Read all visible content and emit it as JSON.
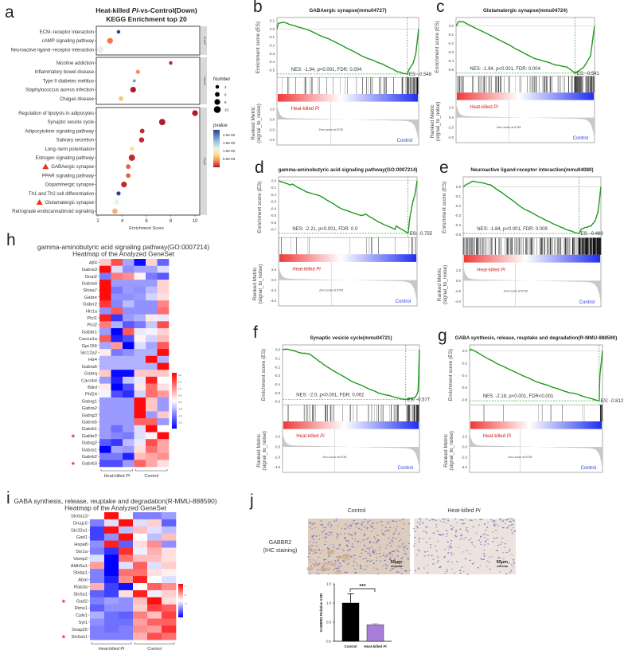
{
  "panel_a": {
    "letter": "a",
    "title_parts": [
      "Heat-killed ",
      "Pi",
      "-vs-Control(Down)"
    ],
    "title_line2": "KEGG Enrichment top 20",
    "xlabel": "Enrichment Score",
    "xticks": [
      2,
      4,
      6,
      8,
      10
    ],
    "xlim": [
      1.7,
      10.5
    ],
    "size_legend_title": "Number",
    "size_legend": [
      4,
      6,
      8,
      10
    ],
    "color_legend_title": "pvalue",
    "color_legend_labels": [
      "2.0e-02",
      "1.5e-02",
      "1.0e-02",
      "5.0e-03"
    ],
    "marker_color": "#e8321e",
    "facets": [
      {
        "label": "EnvIP",
        "terms": [
          {
            "name": "ECM−receptor interaction",
            "score": 3.7,
            "number": 4,
            "pvalue": 0.025,
            "marked": false
          },
          {
            "name": "cAMP signaling pathway",
            "score": 3.0,
            "number": 8,
            "pvalue": 0.007,
            "marked": false
          },
          {
            "name": "Neuroactive ligand−receptor interaction",
            "score": 2.2,
            "number": 10,
            "pvalue": 0.014,
            "marked": false
          }
        ]
      },
      {
        "label": "HumD",
        "terms": [
          {
            "name": "Nicotine addiction",
            "score": 8.0,
            "number": 4,
            "pvalue": 0.003,
            "marked": false
          },
          {
            "name": "Inflammatory bowel disease",
            "score": 5.3,
            "number": 5,
            "pvalue": 0.008,
            "marked": false
          },
          {
            "name": "Type II diabetes mellitus",
            "score": 5.0,
            "number": 3,
            "pvalue": 0.02,
            "marked": false
          },
          {
            "name": "Staphylococcus aureus infection",
            "score": 4.9,
            "number": 8,
            "pvalue": 0.002,
            "marked": false
          },
          {
            "name": "Chagas disease",
            "score": 3.9,
            "number": 6,
            "pvalue": 0.01,
            "marked": false
          }
        ]
      },
      {
        "label": "OrgS",
        "terms": [
          {
            "name": "Regulation of lipolysis in adipocytes",
            "score": 10.0,
            "number": 8,
            "pvalue": 0.002,
            "marked": false
          },
          {
            "name": "Synaptic vesicle cycle",
            "score": 7.3,
            "number": 9,
            "pvalue": 0.002,
            "marked": false
          },
          {
            "name": "Adipocytokine signaling pathway",
            "score": 5.65,
            "number": 6,
            "pvalue": 0.003,
            "marked": false
          },
          {
            "name": "Salivary secretion",
            "score": 5.6,
            "number": 7,
            "pvalue": 0.003,
            "marked": false
          },
          {
            "name": "Long−term potentiation",
            "score": 4.8,
            "number": 5,
            "pvalue": 0.011,
            "marked": false
          },
          {
            "name": "Estrogen signaling pathway",
            "score": 4.8,
            "number": 9,
            "pvalue": 0.003,
            "marked": false
          },
          {
            "name": "GABAergic synapse",
            "score": 4.5,
            "number": 6,
            "pvalue": 0.006,
            "marked": true
          },
          {
            "name": "PPAR signaling pathway",
            "score": 4.5,
            "number": 6,
            "pvalue": 0.006,
            "marked": false
          },
          {
            "name": "Dopaminergic synapse",
            "score": 4.15,
            "number": 8,
            "pvalue": 0.003,
            "marked": false
          },
          {
            "name": "Th1 and Th2 cell differentiation",
            "score": 3.7,
            "number": 5,
            "pvalue": 0.025,
            "marked": false
          },
          {
            "name": "Glutamatergic synapse",
            "score": 3.55,
            "number": 6,
            "pvalue": 0.014,
            "marked": true
          },
          {
            "name": "Retrograde endocannabinoid signaling",
            "score": 3.4,
            "number": 7,
            "pvalue": 0.009,
            "marked": false
          }
        ]
      }
    ]
  },
  "gsea_common": {
    "es_ylabel": "Enrichment score (ES)",
    "rank_ylabel_1": "Ranked Metric",
    "rank_ylabel_2": "(signal_to_noise)",
    "rank_ticks": [
      "2.0",
      "0.0",
      "-2.0",
      "-4.0"
    ],
    "zero_score": "Zero score at 6735",
    "pos_label_parts": [
      "Heat-killed ",
      "Pi"
    ],
    "neg_label": "Control",
    "curve_color": "#1e9a1e",
    "pos_color": "#d7191c",
    "neg_color": "#2b3bd6"
  },
  "gsea": [
    {
      "letter": "b",
      "title": "GABAergic synapse(mmu04727)",
      "nes_text": "NES: -1.94, p<0.001, FDR: 0.004",
      "es_label": "ES: -0.548",
      "es_min": -0.548,
      "peak": 0.92,
      "ylim": [
        -0.56,
        0.11
      ],
      "es_ticks": [
        "0.1",
        "0.0",
        "-0.1",
        "-0.2",
        "-0.3",
        "-0.4",
        "-0.5"
      ],
      "es_tick_values": [
        0.1,
        0,
        -0.1,
        -0.2,
        -0.3,
        -0.4,
        -0.5
      ],
      "hit_count": 70,
      "curve": [
        [
          0,
          0
        ],
        [
          0.01,
          0.07
        ],
        [
          0.05,
          0.08
        ],
        [
          0.1,
          0.05
        ],
        [
          0.2,
          0.0
        ],
        [
          0.4,
          -0.15
        ],
        [
          0.6,
          -0.33
        ],
        [
          0.75,
          -0.43
        ],
        [
          0.85,
          -0.52
        ],
        [
          0.92,
          -0.548
        ],
        [
          0.93,
          -0.5
        ],
        [
          0.96,
          -0.42
        ],
        [
          0.98,
          -0.3
        ],
        [
          1,
          0
        ]
      ]
    },
    {
      "letter": "c",
      "title": "Glutamatergic synapse(mmu04724)",
      "nes_text": "NES: -1.94, p<0.001, FDR: 0.004",
      "es_label": "ES: -0.541",
      "es_min": -0.541,
      "peak": 0.86,
      "ylim": [
        -0.55,
        0.07
      ],
      "es_ticks": [
        "0.0",
        "-0.1",
        "-0.2",
        "-0.3",
        "-0.4",
        "-0.5"
      ],
      "es_tick_values": [
        0,
        -0.1,
        -0.2,
        -0.3,
        -0.4,
        -0.5
      ],
      "hit_count": 130,
      "curve": [
        [
          0,
          0
        ],
        [
          0.02,
          0.05
        ],
        [
          0.05,
          0.05
        ],
        [
          0.3,
          -0.15
        ],
        [
          0.55,
          -0.36
        ],
        [
          0.65,
          -0.41
        ],
        [
          0.72,
          -0.45
        ],
        [
          0.8,
          -0.47
        ],
        [
          0.86,
          -0.541
        ],
        [
          0.92,
          -0.48
        ],
        [
          0.97,
          -0.35
        ],
        [
          1,
          0
        ]
      ]
    },
    {
      "letter": "d",
      "title": "gamma-aminobutyric acid signaling pathway(GO:0007214)",
      "nes_text": "NES: -2.21, p<0.001, FDR: 0.0",
      "es_label": "ES: -0.755",
      "es_min": -0.755,
      "peak": 0.935,
      "ylim": [
        -0.78,
        0.02
      ],
      "es_ticks": [
        "0.0",
        "-0.1",
        "-0.2",
        "-0.3",
        "-0.4",
        "-0.5",
        "-0.6",
        "-0.7"
      ],
      "es_tick_values": [
        0,
        -0.1,
        -0.2,
        -0.3,
        -0.4,
        -0.5,
        -0.6,
        -0.7
      ],
      "hit_count": 20,
      "curve": [
        [
          0,
          0
        ],
        [
          0.08,
          -0.06
        ],
        [
          0.1,
          -0.05
        ],
        [
          0.2,
          -0.16
        ],
        [
          0.3,
          -0.22
        ],
        [
          0.45,
          -0.4
        ],
        [
          0.6,
          -0.5
        ],
        [
          0.63,
          -0.48
        ],
        [
          0.72,
          -0.59
        ],
        [
          0.84,
          -0.7
        ],
        [
          0.85,
          -0.65
        ],
        [
          0.935,
          -0.755
        ],
        [
          0.95,
          -0.5
        ],
        [
          0.97,
          -0.3
        ],
        [
          0.985,
          -0.2
        ],
        [
          1,
          0
        ]
      ]
    },
    {
      "letter": "e",
      "title": "Neuroactive ligand-receptor interaction(mmu04080)",
      "nes_text": "NES: -1.84, p<0.001, FDR: 0.009",
      "es_label": "ES: -0.489",
      "es_min": -0.489,
      "peak": 0.84,
      "ylim": [
        -0.51,
        0.08
      ],
      "es_ticks": [
        "0.0",
        "-0.1",
        "-0.2",
        "-0.3",
        "-0.4",
        "-0.5"
      ],
      "es_tick_values": [
        0,
        -0.1,
        -0.2,
        -0.3,
        -0.4,
        -0.5
      ],
      "hit_count": 260,
      "curve": [
        [
          0,
          0
        ],
        [
          0.03,
          0.03
        ],
        [
          0.07,
          0.06
        ],
        [
          0.2,
          0.02
        ],
        [
          0.45,
          -0.24
        ],
        [
          0.6,
          -0.35
        ],
        [
          0.75,
          -0.45
        ],
        [
          0.84,
          -0.489
        ],
        [
          0.86,
          -0.44
        ],
        [
          0.93,
          -0.41
        ],
        [
          0.96,
          -0.35
        ],
        [
          0.98,
          -0.25
        ],
        [
          1,
          0
        ]
      ]
    },
    {
      "letter": "f",
      "title": "Synaptic vesicle cycle(mmu04721)",
      "nes_text": "NES: -2.0, p<0.001, FDR: 0.002",
      "es_label": "ES: -0.577",
      "es_min": -0.577,
      "peak": 0.9,
      "ylim": [
        -0.61,
        0.03
      ],
      "es_ticks": [
        "0.0",
        "-0.1",
        "-0.2",
        "-0.3",
        "-0.4",
        "-0.5",
        "-0.6"
      ],
      "es_tick_values": [
        0,
        -0.1,
        -0.2,
        -0.3,
        -0.4,
        -0.5,
        -0.6
      ],
      "hit_count": 80,
      "curve": [
        [
          0,
          0
        ],
        [
          0.03,
          0.01
        ],
        [
          0.15,
          -0.04
        ],
        [
          0.2,
          -0.05
        ],
        [
          0.3,
          -0.17
        ],
        [
          0.5,
          -0.36
        ],
        [
          0.7,
          -0.5
        ],
        [
          0.85,
          -0.56
        ],
        [
          0.9,
          -0.577
        ],
        [
          0.97,
          -0.55
        ],
        [
          0.99,
          -0.48
        ],
        [
          1,
          0
        ]
      ]
    },
    {
      "letter": "g",
      "title": "GABA synthesis, release, reuptake and degradation(R-MMU-888590)",
      "nes_text": "NES: -2.18, p<0.001, FDR<0.001",
      "es_label": "ES: -0.812",
      "es_min": -0.812,
      "peak": 0.975,
      "ylim": [
        -0.84,
        0.06
      ],
      "es_ticks": [
        "0.0",
        "-0.2",
        "-0.4",
        "-0.6",
        "-0.8"
      ],
      "es_tick_values": [
        0,
        -0.2,
        -0.4,
        -0.6,
        -0.8
      ],
      "hit_count": 16,
      "curve": [
        [
          0,
          0
        ],
        [
          0.01,
          0.03
        ],
        [
          0.2,
          -0.2
        ],
        [
          0.5,
          -0.5
        ],
        [
          0.75,
          -0.68
        ],
        [
          0.8,
          -0.7
        ],
        [
          0.88,
          -0.76
        ],
        [
          0.975,
          -0.812
        ],
        [
          0.98,
          -0.4
        ],
        [
          1,
          0
        ]
      ]
    }
  ],
  "heatmap_h": {
    "letter": "h",
    "title": "gamma-aminobutyric acid signaling pathway(GO:0007214)",
    "subtitle": "Heatmap of the Analyzed GeneSet",
    "group_pos_parts": [
      "Heat-killed ",
      "Pi"
    ],
    "group_neg": "Control",
    "vmax": 2.3,
    "colorbar_labels": [
      "2.0",
      "1.5",
      "1.0",
      "0.5",
      "0.0",
      "-0.5",
      "-1.0",
      "-1.5"
    ],
    "genes": [
      "Atf4",
      "Gabra3",
      "Gnai2",
      "Gabra4",
      "Shisa7",
      "Gabre",
      "Gabrr2",
      "Htr1a",
      "Plcl1",
      "Plcl2",
      "Gabbr1",
      "Cacna1a",
      "Gpr156",
      "Slc12a2",
      "Htr4",
      "Gabra6",
      "Gabrq",
      "Cacnb4",
      "Bdnf",
      "Phf24",
      "Gabrg1",
      "Gabra2",
      "Gabrg3",
      "Gabra5",
      "Gabrb1",
      "Gabbr2",
      "Gabrg2",
      "Gabra1",
      "Gabrb2",
      "Gabrb3"
    ],
    "starred": [
      "Gabbr2",
      "Gabrb3"
    ],
    "values": [
      [
        0.5,
        1.6,
        -0.8,
        -2.2,
        0.4,
        -1.4
      ],
      [
        2.2,
        -0.3,
        -1.0,
        -0.8,
        -0.8,
        -0.3
      ],
      [
        -1.2,
        1.2,
        1.0,
        0.1,
        -1.2,
        -1.5
      ],
      [
        2.2,
        -0.9,
        -0.9,
        -0.9,
        -0.9,
        0.4
      ],
      [
        2.2,
        -1.2,
        -0.9,
        -1.0,
        -0.6,
        0.4
      ],
      [
        2.2,
        -1.0,
        -1.0,
        -0.9,
        -0.4,
        0.3
      ],
      [
        1.8,
        -1.1,
        -0.6,
        -1.0,
        -1.0,
        1.1
      ],
      [
        -1.0,
        1.5,
        -1.0,
        -1.0,
        -1.0,
        1.3
      ],
      [
        2.0,
        -1.8,
        -0.9,
        -0.7,
        0.2,
        -0.2
      ],
      [
        1.2,
        -0.7,
        -1.5,
        -1.2,
        -0.5,
        1.6
      ],
      [
        -0.9,
        -2.3,
        1.5,
        -0.2,
        -0.1,
        0.4
      ],
      [
        1.5,
        -2.0,
        -1.6,
        0.1,
        -0.4,
        0.6
      ],
      [
        -0.8,
        0.9,
        -2.3,
        -0.3,
        -0.8,
        1.5
      ],
      [
        0.2,
        -1.2,
        -1.0,
        -0.7,
        -0.7,
        2.2
      ],
      [
        -0.7,
        -0.7,
        -0.7,
        -0.7,
        2.2,
        -0.7
      ],
      [
        -0.7,
        -0.7,
        -0.7,
        -0.7,
        -0.7,
        2.2
      ],
      [
        0.5,
        -2.2,
        -2.2,
        0.5,
        0.5,
        0.5
      ],
      [
        -0.9,
        -2.0,
        -0.5,
        -0.2,
        2.0,
        0.0
      ],
      [
        0.2,
        -2.3,
        -1.6,
        0.2,
        1.3,
        0.3
      ],
      [
        -0.1,
        -1.6,
        -1.9,
        -0.4,
        1.3,
        0.9
      ],
      [
        -0.9,
        -0.9,
        -0.9,
        2.2,
        0.5,
        -0.9
      ],
      [
        -0.9,
        -0.9,
        -0.9,
        2.2,
        0.5,
        -0.9
      ],
      [
        -0.9,
        -0.9,
        -0.9,
        2.2,
        -0.9,
        0.5
      ],
      [
        -0.9,
        -0.9,
        -0.9,
        1.4,
        1.4,
        -0.9
      ],
      [
        -0.9,
        -1.3,
        -0.9,
        -0.3,
        2.2,
        0.0
      ],
      [
        -0.9,
        -1.1,
        -1.2,
        -0.3,
        0.1,
        2.2
      ],
      [
        -1.5,
        -1.8,
        -0.6,
        -0.2,
        1.6,
        0.8
      ],
      [
        -2.3,
        -0.8,
        -0.9,
        0.3,
        1.3,
        0.8
      ],
      [
        -1.2,
        -1.2,
        -2.0,
        0.6,
        0.8,
        1.0
      ],
      [
        -1.6,
        -1.6,
        -0.9,
        1.4,
        0.8,
        0.3
      ]
    ]
  },
  "heatmap_i": {
    "letter": "i",
    "title": "GABA synthesis, release, reuptake and degradation(R-MMU-888590)",
    "subtitle": "Heatmap of the Analyzed GeneSet",
    "group_pos_parts": [
      "Heat-killed ",
      "Pi"
    ],
    "group_neg": "Control",
    "vmax": 1.6,
    "colorbar_labels": [
      "1",
      "0",
      "-1"
    ],
    "genes": [
      "Slc6a13",
      "Dnajc5",
      "Slc32a1",
      "Gad1",
      "Hspa8",
      "Stx1a",
      "Vamp2",
      "Aldh5a1",
      "Stxbp1",
      "Abat",
      "Rab3a",
      "Slc6a1",
      "Gad2",
      "Rims1",
      "Cplx1",
      "Syt1",
      "Snap25",
      "Slc6a11"
    ],
    "starred": [
      "Gad2",
      "Slc6a11"
    ],
    "values": [
      [
        0.0,
        1.5,
        0.0,
        -0.8,
        -0.8,
        -0.6
      ],
      [
        -0.8,
        -0.2,
        1.5,
        -0.2,
        0.3,
        -1.0
      ],
      [
        -1.2,
        1.5,
        -0.4,
        0.4,
        -0.2,
        -0.4
      ],
      [
        -1.2,
        -0.7,
        1.5,
        0.0,
        -0.4,
        0.4
      ],
      [
        -0.7,
        1.4,
        -1.0,
        0.2,
        0.7,
        -0.7
      ],
      [
        -0.8,
        -1.3,
        1.3,
        -0.1,
        0.5,
        0.2
      ],
      [
        -0.2,
        -1.6,
        0.9,
        0.4,
        0.4,
        0.2
      ],
      [
        0.6,
        -1.6,
        -0.2,
        1.0,
        -0.2,
        0.3
      ],
      [
        -0.8,
        -1.6,
        0.9,
        0.9,
        0.2,
        0.1
      ],
      [
        -0.8,
        -1.4,
        0.7,
        1.4,
        0.0,
        -0.2
      ],
      [
        0.5,
        -1.2,
        -1.5,
        0.0,
        1.0,
        0.7
      ],
      [
        -1.0,
        -1.2,
        0.2,
        1.4,
        -0.1,
        0.3
      ],
      [
        -0.8,
        -0.6,
        -0.7,
        0.4,
        1.5,
        0.2
      ],
      [
        -1.0,
        -0.7,
        -0.7,
        0.3,
        1.2,
        1.0
      ],
      [
        -0.5,
        -0.9,
        -1.0,
        0.8,
        0.4,
        1.2
      ],
      [
        -0.7,
        -0.9,
        -0.9,
        0.6,
        1.0,
        1.0
      ],
      [
        -0.8,
        -0.9,
        -0.8,
        0.7,
        0.6,
        1.3
      ],
      [
        -0.8,
        -0.8,
        -0.8,
        0.5,
        1.1,
        0.9
      ]
    ]
  },
  "panel_j": {
    "letter": "j",
    "col_control": "Control",
    "col_treat_parts": [
      "Heat-killed ",
      "Pi"
    ],
    "row_label_1": "GABBR2",
    "row_label_2": "(IHC staining)",
    "scale_bar": "50μm",
    "chart_data": {
      "type": "bar",
      "categories": [
        "Control",
        "Heat-killed Pi"
      ],
      "category_parts": [
        [
          "Control",
          ""
        ],
        [
          "Heat-killed ",
          "Pi"
        ]
      ],
      "values": [
        1.0,
        0.43
      ],
      "errors": [
        0.24,
        0.03
      ],
      "colors": [
        "#000000",
        "#a77fd9"
      ],
      "ylabel": "GABBR2 Relative AOD",
      "ylim": [
        0,
        1.5
      ],
      "yticks": [
        "0.0",
        "0.5",
        "1.0",
        "1.5"
      ],
      "ytick_values": [
        0,
        0.5,
        1.0,
        1.5
      ],
      "significance": "***"
    }
  }
}
